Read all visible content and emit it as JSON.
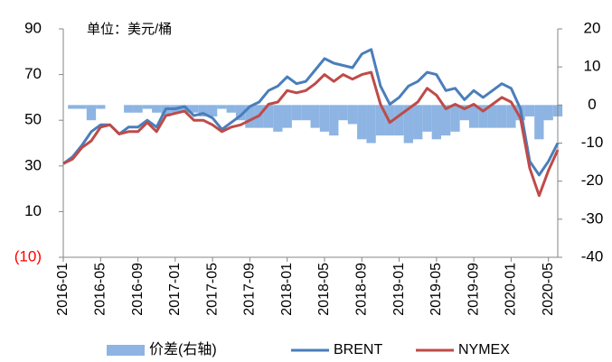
{
  "chart_data": {
    "type": "line",
    "annotation": "单位：美元/桶",
    "x": [
      "2016-01",
      "2016-02",
      "2016-03",
      "2016-04",
      "2016-05",
      "2016-06",
      "2016-07",
      "2016-08",
      "2016-09",
      "2016-10",
      "2016-11",
      "2016-12",
      "2017-01",
      "2017-02",
      "2017-03",
      "2017-04",
      "2017-05",
      "2017-06",
      "2017-07",
      "2017-08",
      "2017-09",
      "2017-10",
      "2017-11",
      "2017-12",
      "2018-01",
      "2018-02",
      "2018-03",
      "2018-04",
      "2018-05",
      "2018-06",
      "2018-07",
      "2018-08",
      "2018-09",
      "2018-10",
      "2018-11",
      "2018-12",
      "2019-01",
      "2019-02",
      "2019-03",
      "2019-04",
      "2019-05",
      "2019-06",
      "2019-07",
      "2019-08",
      "2019-09",
      "2019-10",
      "2019-11",
      "2019-12",
      "2020-01",
      "2020-02",
      "2020-03",
      "2020-04",
      "2020-05",
      "2020-06"
    ],
    "xticks": [
      "2016-01",
      "2016-05",
      "2016-09",
      "2017-01",
      "2017-05",
      "2017-09",
      "2018-01",
      "2018-05",
      "2018-09",
      "2019-01",
      "2019-05",
      "2019-09",
      "2020-01",
      "2020-05"
    ],
    "series": [
      {
        "name": "价差(右轴)",
        "kind": "bar",
        "axis": "y2",
        "color": "#8db4e2",
        "values": [
          0,
          -1,
          -1,
          -4,
          -1,
          0,
          0,
          -2,
          -2,
          -1,
          -2,
          -3,
          -2,
          -2,
          -2,
          -3,
          -3,
          -1,
          -2,
          -4,
          -6,
          -6,
          -6,
          -7,
          -6,
          -4,
          -4,
          -6,
          -7,
          -8,
          -4,
          -5,
          -9,
          -10,
          -8,
          -8,
          -8,
          -10,
          -9,
          -7,
          -9,
          -8,
          -7,
          -4,
          -6,
          -6,
          -6,
          -6,
          -6,
          -4,
          -3,
          -9,
          -4,
          -3
        ]
      },
      {
        "name": "BRENT",
        "kind": "line",
        "color": "#4a7ebb",
        "values": [
          31,
          34,
          39,
          45,
          48,
          48,
          44,
          47,
          47,
          50,
          47,
          55,
          55,
          56,
          52,
          53,
          51,
          46,
          49,
          52,
          56,
          58,
          63,
          65,
          69,
          66,
          67,
          72,
          77,
          75,
          74,
          73,
          79,
          81,
          65,
          57,
          60,
          65,
          67,
          71,
          70,
          63,
          64,
          59,
          63,
          60,
          63,
          66,
          64,
          55,
          32,
          26,
          32,
          40
        ]
      },
      {
        "name": "NYMEX",
        "kind": "line",
        "color": "#be4b48",
        "values": [
          31,
          33,
          38,
          41,
          47,
          48,
          44,
          45,
          45,
          49,
          45,
          52,
          53,
          54,
          50,
          50,
          48,
          45,
          47,
          48,
          50,
          52,
          57,
          58,
          63,
          62,
          63,
          66,
          70,
          67,
          70,
          68,
          70,
          71,
          57,
          49,
          52,
          55,
          58,
          64,
          61,
          55,
          57,
          55,
          57,
          54,
          57,
          60,
          58,
          51,
          29,
          17,
          28,
          37
        ]
      }
    ],
    "ylim": [
      -10,
      90
    ],
    "yticks": [
      {
        "value": -10,
        "label": "(10)"
      },
      10,
      30,
      50,
      70,
      90
    ],
    "negative_tick_color": "#ff0000",
    "y2lim": [
      -40,
      20
    ],
    "y2ticks": [
      -40,
      -30,
      -20,
      -10,
      0,
      10,
      20
    ]
  }
}
